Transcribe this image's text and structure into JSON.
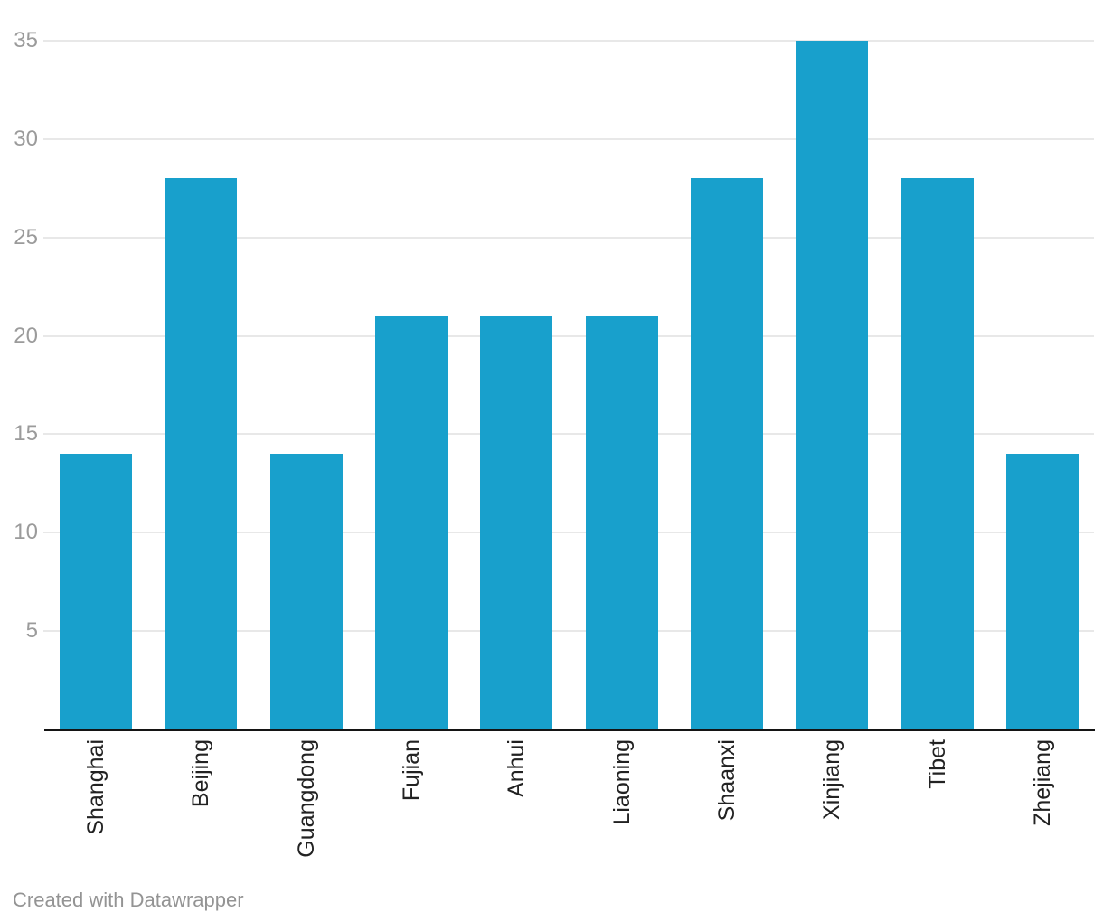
{
  "chart_data": {
    "type": "bar",
    "categories": [
      "Shanghai",
      "Beijing",
      "Guangdong",
      "Fujian",
      "Anhui",
      "Liaoning",
      "Shaanxi",
      "Xinjiang",
      "Tibet",
      "Zhejiang"
    ],
    "values": [
      14,
      28,
      14,
      21,
      21,
      21,
      28,
      35,
      28,
      14
    ],
    "title": "",
    "xlabel": "",
    "ylabel": "",
    "ylim": [
      0,
      35
    ],
    "yticks": [
      5,
      10,
      15,
      20,
      25,
      30,
      35
    ],
    "grid": true,
    "legend": "none",
    "colors": {
      "bar": "#18a0cc",
      "gridline": "#e8e8e8",
      "ytick_label": "#9b9b9b",
      "category_label": "#222222",
      "axis_line": "#141414"
    }
  },
  "footer": {
    "attribution": "Created with Datawrapper"
  }
}
